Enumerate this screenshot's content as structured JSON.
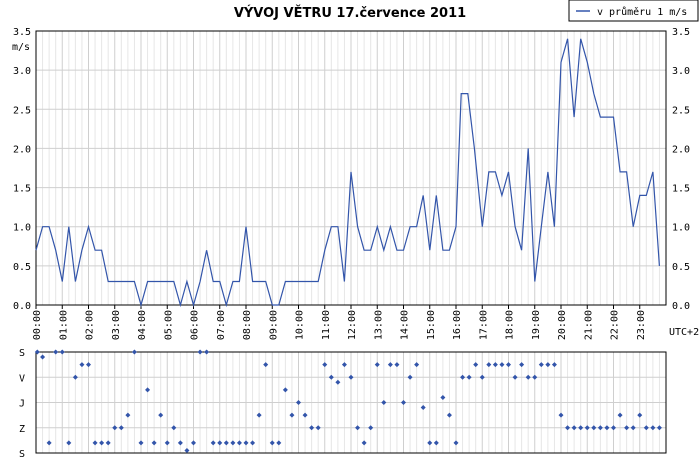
{
  "chart_data": [
    {
      "type": "line",
      "title": "VÝVOJ VĚTRU  17.července 2011",
      "ylabel": "m/s",
      "ylim": [
        0,
        3.5
      ],
      "yticks": [
        "0.0",
        "0.5",
        "1.0",
        "1.5",
        "2.0",
        "2.5",
        "3.0",
        "3.5"
      ],
      "xlabel": "UTC+2",
      "xlim": [
        0,
        24
      ],
      "xticks": [
        "00:00",
        "01:00",
        "02:00",
        "03:00",
        "04:00",
        "05:00",
        "06:00",
        "07:00",
        "08:00",
        "09:00",
        "10:00",
        "11:00",
        "12:00",
        "13:00",
        "14:00",
        "15:00",
        "16:00",
        "17:00",
        "18:00",
        "19:00",
        "20:00",
        "21:00",
        "22:00",
        "23:00"
      ],
      "grid": true,
      "legend_position": "top-right",
      "series": [
        {
          "name": "v průměru 1 m/s",
          "color": "#3355aa",
          "points": [
            [
              0.0,
              0.7
            ],
            [
              0.25,
              1.0
            ],
            [
              0.5,
              1.0
            ],
            [
              0.75,
              0.7
            ],
            [
              1.0,
              0.3
            ],
            [
              1.25,
              1.0
            ],
            [
              1.5,
              0.3
            ],
            [
              1.75,
              0.7
            ],
            [
              2.0,
              1.0
            ],
            [
              2.25,
              0.7
            ],
            [
              2.5,
              0.7
            ],
            [
              2.75,
              0.3
            ],
            [
              3.0,
              0.3
            ],
            [
              3.25,
              0.3
            ],
            [
              3.5,
              0.3
            ],
            [
              3.75,
              0.3
            ],
            [
              4.0,
              0.0
            ],
            [
              4.25,
              0.3
            ],
            [
              4.5,
              0.3
            ],
            [
              4.75,
              0.3
            ],
            [
              5.0,
              0.3
            ],
            [
              5.25,
              0.3
            ],
            [
              5.5,
              0.0
            ],
            [
              5.75,
              0.3
            ],
            [
              6.0,
              0.0
            ],
            [
              6.25,
              0.3
            ],
            [
              6.5,
              0.7
            ],
            [
              6.75,
              0.3
            ],
            [
              7.0,
              0.3
            ],
            [
              7.25,
              0.0
            ],
            [
              7.5,
              0.3
            ],
            [
              7.75,
              0.3
            ],
            [
              8.0,
              1.0
            ],
            [
              8.25,
              0.3
            ],
            [
              8.5,
              0.3
            ],
            [
              8.75,
              0.3
            ],
            [
              9.0,
              0.0
            ],
            [
              9.25,
              0.0
            ],
            [
              9.5,
              0.3
            ],
            [
              9.75,
              0.3
            ],
            [
              10.0,
              0.3
            ],
            [
              10.25,
              0.3
            ],
            [
              10.5,
              0.3
            ],
            [
              10.75,
              0.3
            ],
            [
              11.0,
              0.7
            ],
            [
              11.25,
              1.0
            ],
            [
              11.5,
              1.0
            ],
            [
              11.75,
              0.3
            ],
            [
              12.0,
              1.7
            ],
            [
              12.25,
              1.0
            ],
            [
              12.5,
              0.7
            ],
            [
              12.75,
              0.7
            ],
            [
              13.0,
              1.0
            ],
            [
              13.25,
              0.7
            ],
            [
              13.5,
              1.0
            ],
            [
              13.75,
              0.7
            ],
            [
              14.0,
              0.7
            ],
            [
              14.25,
              1.0
            ],
            [
              14.5,
              1.0
            ],
            [
              14.75,
              1.4
            ],
            [
              15.0,
              0.7
            ],
            [
              15.25,
              1.4
            ],
            [
              15.5,
              0.7
            ],
            [
              15.75,
              0.7
            ],
            [
              16.0,
              1.0
            ],
            [
              16.2,
              2.7
            ],
            [
              16.45,
              2.7
            ],
            [
              16.7,
              2.0
            ],
            [
              17.0,
              1.0
            ],
            [
              17.25,
              1.7
            ],
            [
              17.5,
              1.7
            ],
            [
              17.75,
              1.4
            ],
            [
              18.0,
              1.7
            ],
            [
              18.25,
              1.0
            ],
            [
              18.5,
              0.7
            ],
            [
              18.75,
              2.0
            ],
            [
              19.0,
              0.3
            ],
            [
              19.25,
              1.0
            ],
            [
              19.5,
              1.7
            ],
            [
              19.75,
              1.0
            ],
            [
              20.0,
              3.1
            ],
            [
              20.25,
              3.4
            ],
            [
              20.5,
              2.4
            ],
            [
              20.75,
              3.4
            ],
            [
              21.0,
              3.1
            ],
            [
              21.25,
              2.7
            ],
            [
              21.5,
              2.4
            ],
            [
              21.75,
              2.4
            ],
            [
              22.0,
              2.4
            ],
            [
              22.25,
              1.7
            ],
            [
              22.5,
              1.7
            ],
            [
              22.75,
              1.0
            ],
            [
              23.0,
              1.4
            ],
            [
              23.25,
              1.4
            ],
            [
              23.5,
              1.7
            ],
            [
              23.75,
              0.5
            ]
          ]
        }
      ]
    },
    {
      "type": "scatter",
      "yticks": [
        "S",
        "V",
        "J",
        "Z",
        "S"
      ],
      "xlim": [
        0,
        24
      ],
      "grid": true,
      "series": [
        {
          "color": "#3355aa",
          "points": [
            [
              0.05,
              0.0
            ],
            [
              0.25,
              0.2
            ],
            [
              0.5,
              3.6
            ],
            [
              0.75,
              0.0
            ],
            [
              1.0,
              0.0
            ],
            [
              1.25,
              3.6
            ],
            [
              1.5,
              1.0
            ],
            [
              1.75,
              0.5
            ],
            [
              2.0,
              0.5
            ],
            [
              2.25,
              3.6
            ],
            [
              2.5,
              3.6
            ],
            [
              2.75,
              3.6
            ],
            [
              3.0,
              3.0
            ],
            [
              3.25,
              3.0
            ],
            [
              3.5,
              2.5
            ],
            [
              3.75,
              0.0
            ],
            [
              4.0,
              3.6
            ],
            [
              4.25,
              1.5
            ],
            [
              4.5,
              3.6
            ],
            [
              4.75,
              2.5
            ],
            [
              5.0,
              3.6
            ],
            [
              5.25,
              3.0
            ],
            [
              5.5,
              3.6
            ],
            [
              5.75,
              3.9
            ],
            [
              6.0,
              3.6
            ],
            [
              6.25,
              0.0
            ],
            [
              6.5,
              0.0
            ],
            [
              6.75,
              3.6
            ],
            [
              7.0,
              3.6
            ],
            [
              7.25,
              3.6
            ],
            [
              7.5,
              3.6
            ],
            [
              7.75,
              3.6
            ],
            [
              8.0,
              3.6
            ],
            [
              8.25,
              3.6
            ],
            [
              8.5,
              2.5
            ],
            [
              8.75,
              0.5
            ],
            [
              9.0,
              3.6
            ],
            [
              9.25,
              3.6
            ],
            [
              9.5,
              1.5
            ],
            [
              9.75,
              2.5
            ],
            [
              10.0,
              2.0
            ],
            [
              10.25,
              2.5
            ],
            [
              10.5,
              3.0
            ],
            [
              10.75,
              3.0
            ],
            [
              11.0,
              0.5
            ],
            [
              11.25,
              1.0
            ],
            [
              11.5,
              1.2
            ],
            [
              11.75,
              0.5
            ],
            [
              12.0,
              1.0
            ],
            [
              12.25,
              3.0
            ],
            [
              12.5,
              3.6
            ],
            [
              12.75,
              3.0
            ],
            [
              13.0,
              0.5
            ],
            [
              13.25,
              2.0
            ],
            [
              13.5,
              0.5
            ],
            [
              13.75,
              0.5
            ],
            [
              14.0,
              2.0
            ],
            [
              14.25,
              1.0
            ],
            [
              14.5,
              0.5
            ],
            [
              14.75,
              2.2
            ],
            [
              15.0,
              3.6
            ],
            [
              15.25,
              3.6
            ],
            [
              15.5,
              1.8
            ],
            [
              15.75,
              2.5
            ],
            [
              16.0,
              3.6
            ],
            [
              16.25,
              1.0
            ],
            [
              16.5,
              1.0
            ],
            [
              16.75,
              0.5
            ],
            [
              17.0,
              1.0
            ],
            [
              17.25,
              0.5
            ],
            [
              17.5,
              0.5
            ],
            [
              17.75,
              0.5
            ],
            [
              18.0,
              0.5
            ],
            [
              18.25,
              1.0
            ],
            [
              18.5,
              0.5
            ],
            [
              18.75,
              1.0
            ],
            [
              19.0,
              1.0
            ],
            [
              19.25,
              0.5
            ],
            [
              19.5,
              0.5
            ],
            [
              19.75,
              0.5
            ],
            [
              20.0,
              2.5
            ],
            [
              20.25,
              3.0
            ],
            [
              20.5,
              3.0
            ],
            [
              20.75,
              3.0
            ],
            [
              21.0,
              3.0
            ],
            [
              21.25,
              3.0
            ],
            [
              21.5,
              3.0
            ],
            [
              21.75,
              3.0
            ],
            [
              22.0,
              3.0
            ],
            [
              22.25,
              2.5
            ],
            [
              22.5,
              3.0
            ],
            [
              22.75,
              3.0
            ],
            [
              23.0,
              2.5
            ],
            [
              23.25,
              3.0
            ],
            [
              23.5,
              3.0
            ],
            [
              23.75,
              3.0
            ]
          ]
        }
      ]
    }
  ]
}
